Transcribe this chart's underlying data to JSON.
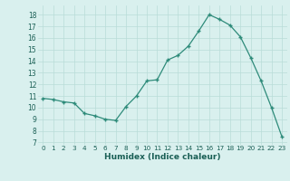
{
  "x": [
    0,
    1,
    2,
    3,
    4,
    5,
    6,
    7,
    8,
    9,
    10,
    11,
    12,
    13,
    14,
    15,
    16,
    17,
    18,
    19,
    20,
    21,
    22,
    23
  ],
  "y": [
    10.8,
    10.7,
    10.5,
    10.4,
    9.5,
    9.3,
    9.0,
    8.9,
    10.1,
    11.0,
    12.3,
    12.4,
    14.1,
    14.5,
    15.3,
    16.6,
    18.0,
    17.6,
    17.1,
    16.1,
    14.3,
    12.3,
    10.0,
    7.5
  ],
  "line_color": "#2e8b7a",
  "marker": "+",
  "bg_color": "#d9f0ee",
  "grid_color": "#b8dcd8",
  "xlabel": "Humidex (Indice chaleur)",
  "ylabel_ticks": [
    7,
    8,
    9,
    10,
    11,
    12,
    13,
    14,
    15,
    16,
    17,
    18
  ],
  "ylim": [
    6.8,
    18.8
  ],
  "xlim": [
    -0.5,
    23.5
  ],
  "tick_color": "#1a5f55",
  "label_color": "#1a5f55"
}
